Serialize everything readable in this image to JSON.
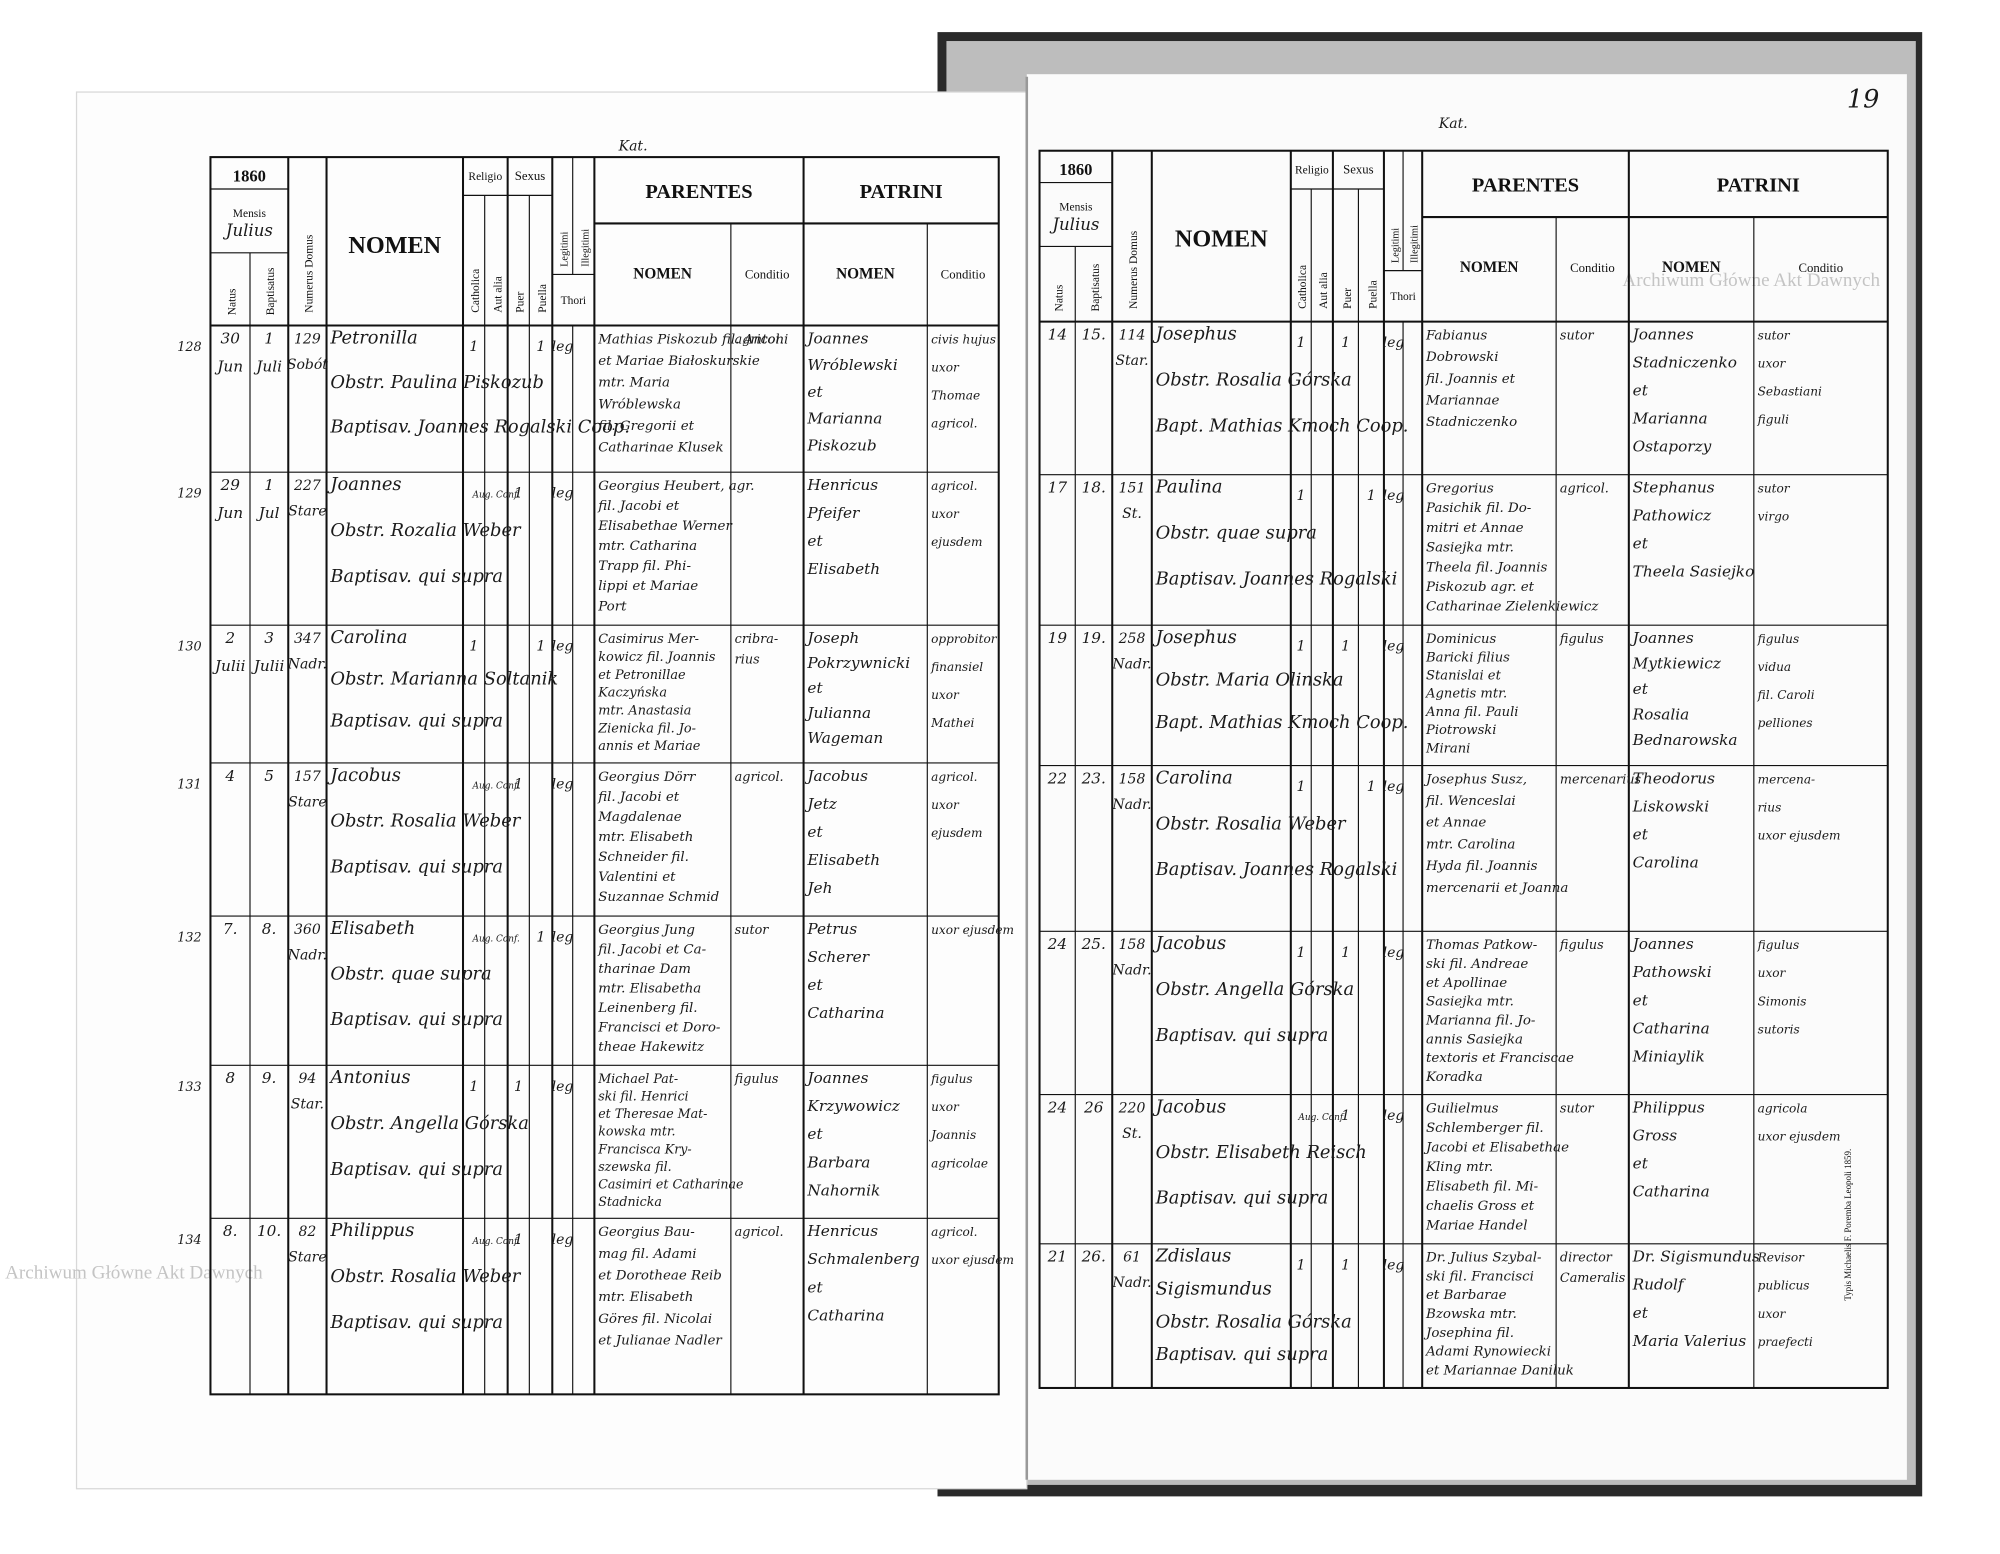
{
  "header": {
    "mensis": "Mensis",
    "natus": "Natus",
    "baptisatus": "Baptisatus",
    "domus": "Numerus Domus",
    "nomen": "NOMEN",
    "religio": "Religio",
    "catholica": "Catholica",
    "aut_alia": "Aut alia",
    "sexus": "Sexus",
    "puer": "Puer",
    "puella": "Puella",
    "legitimi": "Legitimi",
    "illegitimi": "Illegitimi",
    "thori": "Thori",
    "parentes": "PARENTES",
    "patrini": "PATRINI",
    "sub_nomen": "NOMEN",
    "conditio": "Conditio"
  },
  "page_number": "19",
  "printer": "Typis Michaelis F. Poremba Leopoli 1859.",
  "watermarks": [
    "Archiwum Główne Akt Dawnych",
    "Archiwum Główne Akt Dawnych"
  ],
  "pages": [
    {
      "mark": "Kat.",
      "year": "1860",
      "month": "Julius",
      "rows": [
        {
          "row_no": "128",
          "natus": [
            "30",
            "Jun"
          ],
          "baptisatus": [
            "1",
            "Juli"
          ],
          "domus": [
            "129",
            "Sobót"
          ],
          "nomen": [
            "Petronilla",
            "Obstr. Paulina Piskozub",
            "Baptisav. Joannes Rogalski Coop."
          ],
          "catholica": "1",
          "puella": "1",
          "legitimi": "leg",
          "parentes_nomen": [
            "Mathias Piskozub fil. Antoni",
            "et Mariae Białoskurskie",
            "mtr. Maria",
            "Wróblewska",
            "fil. Gregorii et",
            "Catharinae Klusek"
          ],
          "parentes_conditio": [
            "agricol."
          ],
          "patrini_nomen": [
            "Joannes",
            "Wróblewski",
            "et",
            "Marianna",
            "Piskozub"
          ],
          "patrini_conditio": [
            "civis hujus",
            "uxor",
            "Thomae",
            "agricol."
          ]
        },
        {
          "row_no": "129",
          "natus": [
            "29",
            "Jun"
          ],
          "baptisatus": [
            "1",
            "Jul"
          ],
          "domus": [
            "227",
            "Stare"
          ],
          "nomen": [
            "Joannes",
            "Obstr. Rozalia Weber",
            "Baptisav. qui supra"
          ],
          "aut_alia": "Aug. Conf.",
          "puer": "1",
          "legitimi": "leg",
          "parentes_nomen": [
            "Georgius Heubert, agr.",
            "fil. Jacobi et",
            "Elisabethae Werner",
            "mtr. Catharina",
            "Trapp fil. Phi-",
            "lippi et Mariae",
            "Port"
          ],
          "parentes_conditio": [],
          "patrini_nomen": [
            "Henricus",
            "Pfeifer",
            "et",
            "Elisabeth"
          ],
          "patrini_conditio": [
            "agricol.",
            "uxor",
            "ejusdem"
          ]
        },
        {
          "row_no": "130",
          "natus": [
            "2",
            "Julii"
          ],
          "baptisatus": [
            "3",
            "Julii"
          ],
          "domus": [
            "347",
            "Nadr."
          ],
          "nomen": [
            "Carolina",
            "Obstr. Marianna Soltanik",
            "Baptisav. qui supra"
          ],
          "catholica": "1",
          "puella": "1",
          "legitimi": "leg",
          "parentes_nomen": [
            "Casimirus Mer-",
            "kowicz fil. Joannis",
            "et Petronillae",
            "Kaczyńska",
            "mtr. Anastasia",
            "Zienicka fil. Jo-",
            "annis et Mariae"
          ],
          "parentes_conditio": [
            "cribra-",
            "rius"
          ],
          "patrini_nomen": [
            "Joseph",
            "Pokrzywnicki",
            "et",
            "Julianna",
            "Wageman"
          ],
          "patrini_conditio": [
            "opprobitor",
            "finansiel",
            "uxor",
            "Mathei"
          ]
        },
        {
          "row_no": "131",
          "natus": [
            "4"
          ],
          "baptisatus": [
            "5"
          ],
          "domus": [
            "157",
            "Stare"
          ],
          "nomen": [
            "Jacobus",
            "Obstr. Rosalia Weber",
            "Baptisav. qui supra"
          ],
          "aut_alia": "Aug. Conf.",
          "puer": "1",
          "legitimi": "leg",
          "parentes_nomen": [
            "Georgius Dörr",
            "fil. Jacobi et",
            "Magdalenae",
            "mtr. Elisabeth",
            "Schneider fil.",
            "Valentini et",
            "Suzannae Schmid"
          ],
          "parentes_conditio": [
            "agricol."
          ],
          "patrini_nomen": [
            "Jacobus",
            "Jetz",
            "et",
            "Elisabeth",
            "Jeh"
          ],
          "patrini_conditio": [
            "agricol.",
            "uxor",
            "ejusdem"
          ]
        },
        {
          "row_no": "132",
          "natus": [
            "7."
          ],
          "baptisatus": [
            "8."
          ],
          "domus": [
            "360",
            "Nadr."
          ],
          "nomen": [
            "Elisabeth",
            "Obstr. quae supra",
            "Baptisav. qui supra"
          ],
          "aut_alia": "Aug. Conf.",
          "puella": "1",
          "legitimi": "leg",
          "parentes_nomen": [
            "Georgius Jung",
            "fil. Jacobi et Ca-",
            "tharinae Dam",
            "mtr. Elisabetha",
            "Leinenberg fil.",
            "Francisci et Doro-",
            "theae Hakewitz"
          ],
          "parentes_conditio": [
            "sutor"
          ],
          "patrini_nomen": [
            "Petrus",
            "Scherer",
            "et",
            "Catharina"
          ],
          "patrini_conditio": [
            "uxor ejusdem"
          ]
        },
        {
          "row_no": "133",
          "natus": [
            "8"
          ],
          "baptisatus": [
            "9."
          ],
          "domus": [
            "94",
            "Star."
          ],
          "nomen": [
            "Antonius",
            "Obstr. Angella Górska",
            "Baptisav. qui supra"
          ],
          "catholica": "1",
          "puer": "1",
          "legitimi": "leg",
          "parentes_nomen": [
            "Michael Pat-",
            "ski fil. Henrici",
            "et Theresae Mat-",
            "kowska mtr.",
            "Francisca Kry-",
            "szewska fil.",
            "Casimiri et Catharinae",
            "Stadnicka"
          ],
          "parentes_conditio": [
            "figulus"
          ],
          "patrini_nomen": [
            "Joannes",
            "Krzywowicz",
            "et",
            "Barbara",
            "Nahornik"
          ],
          "patrini_conditio": [
            "figulus",
            "uxor",
            "Joannis",
            "agricolae"
          ]
        },
        {
          "row_no": "134",
          "natus": [
            "8."
          ],
          "baptisatus": [
            "10."
          ],
          "domus": [
            "82",
            "Stare"
          ],
          "nomen": [
            "Philippus",
            "Obstr. Rosalia Weber",
            "Baptisav. qui supra"
          ],
          "aut_alia": "Aug. Conf.",
          "puer": "1",
          "legitimi": "leg",
          "parentes_nomen": [
            "Georgius Bau-",
            "mag fil. Adami",
            "et Dorotheae Reib",
            "mtr. Elisabeth",
            "Göres fil. Nicolai",
            "et Julianae Nadler"
          ],
          "parentes_conditio": [
            "agricol."
          ],
          "patrini_nomen": [
            "Henricus",
            "Schmalenberg",
            "et",
            "Catharina"
          ],
          "patrini_conditio": [
            "agricol.",
            "uxor ejusdem"
          ]
        }
      ]
    },
    {
      "mark": "Kat.",
      "year": "1860",
      "month": "Julius",
      "rows": [
        {
          "natus": [
            "14"
          ],
          "baptisatus": [
            "15."
          ],
          "domus": [
            "114",
            "Star."
          ],
          "nomen": [
            "Josephus",
            "Obstr. Rosalia Górska",
            "Bapt. Mathias Kmoch Coop."
          ],
          "catholica": "1",
          "puer": "1",
          "legitimi": "leg",
          "parentes_nomen": [
            "Fabianus",
            "Dobrowski",
            "fil. Joannis et",
            "Mariannae",
            "Stadniczenko"
          ],
          "parentes_conditio": [
            "sutor"
          ],
          "patrini_nomen": [
            "Joannes",
            "Stadniczenko",
            "et",
            "Marianna",
            "Ostaporzy"
          ],
          "patrini_conditio": [
            "sutor",
            "uxor",
            "Sebastiani",
            "figuli"
          ]
        },
        {
          "natus": [
            "17"
          ],
          "baptisatus": [
            "18."
          ],
          "domus": [
            "151",
            "St."
          ],
          "nomen": [
            "Paulina",
            "Obstr. quae supra",
            "Baptisav. Joannes Rogalski"
          ],
          "catholica": "1",
          "puella": "1",
          "legitimi": "leg",
          "parentes_nomen": [
            "Gregorius",
            "Pasichik fil. Do-",
            "mitri et Annae",
            "Sasiejka mtr.",
            "Theela fil. Joannis",
            "Piskozub agr. et",
            "Catharinae Zielenkiewicz"
          ],
          "parentes_conditio": [
            "agricol."
          ],
          "patrini_nomen": [
            "Stephanus",
            "Pathowicz",
            "et",
            "Theela Sasiejko"
          ],
          "patrini_conditio": [
            "sutor",
            "virgo"
          ]
        },
        {
          "natus": [
            "19"
          ],
          "baptisatus": [
            "19."
          ],
          "domus": [
            "258",
            "Nadr."
          ],
          "nomen": [
            "Josephus",
            "Obstr. Maria Olinska",
            "Bapt. Mathias Kmoch Coop."
          ],
          "catholica": "1",
          "puer": "1",
          "legitimi": "leg",
          "parentes_nomen": [
            "Dominicus",
            "Baricki filius",
            "Stanislai et",
            "Agnetis mtr.",
            "Anna fil. Pauli",
            "Piotrowski",
            "Mirani"
          ],
          "parentes_conditio": [
            "figulus"
          ],
          "patrini_nomen": [
            "Joannes",
            "Mytkiewicz",
            "et",
            "Rosalia",
            "Bednarowska"
          ],
          "patrini_conditio": [
            "figulus",
            "vidua",
            "fil. Caroli",
            "pelliones"
          ]
        },
        {
          "natus": [
            "22"
          ],
          "baptisatus": [
            "23."
          ],
          "domus": [
            "158",
            "Nadr."
          ],
          "nomen": [
            "Carolina",
            "Obstr. Rosalia Weber",
            "Baptisav. Joannes Rogalski"
          ],
          "catholica": "1",
          "puella": "1",
          "legitimi": "leg",
          "parentes_nomen": [
            "Josephus Susz,",
            "fil. Wenceslai",
            "et Annae",
            "mtr. Carolina",
            "Hyda fil. Joannis",
            "mercenarii et Joanna"
          ],
          "parentes_conditio": [
            "mercenarius"
          ],
          "patrini_nomen": [
            "Theodorus",
            "Liskowski",
            "et",
            "Carolina"
          ],
          "patrini_conditio": [
            "mercena-",
            "rius",
            "uxor ejusdem"
          ]
        },
        {
          "natus": [
            "24"
          ],
          "baptisatus": [
            "25."
          ],
          "domus": [
            "158",
            "Nadr."
          ],
          "nomen": [
            "Jacobus",
            "Obstr. Angella Górska",
            "Baptisav. qui supra"
          ],
          "catholica": "1",
          "puer": "1",
          "legitimi": "leg",
          "parentes_nomen": [
            "Thomas Patkow-",
            "ski fil. Andreae",
            "et Apollinae",
            "Sasiejka mtr.",
            "Marianna fil. Jo-",
            "annis Sasiejka",
            "textoris et Franciscae",
            "Koradka"
          ],
          "parentes_conditio": [
            "figulus"
          ],
          "patrini_nomen": [
            "Joannes",
            "Pathowski",
            "et",
            "Catharina",
            "Miniaylik"
          ],
          "patrini_conditio": [
            "figulus",
            "uxor",
            "Simonis",
            "sutoris"
          ]
        },
        {
          "natus": [
            "24"
          ],
          "baptisatus": [
            "26"
          ],
          "domus": [
            "220",
            "St."
          ],
          "nomen": [
            "Jacobus",
            "Obstr. Elisabeth Reisch",
            "Baptisav. qui supra"
          ],
          "aut_alia": "Aug. Conf.",
          "puer": "1",
          "legitimi": "leg",
          "parentes_nomen": [
            "Guilielmus",
            "Schlemberger fil.",
            "Jacobi et Elisabethae",
            "Kling mtr.",
            "Elisabeth fil. Mi-",
            "chaelis Gross et",
            "Mariae Handel"
          ],
          "parentes_conditio": [
            "sutor"
          ],
          "patrini_nomen": [
            "Philippus",
            "Gross",
            "et",
            "Catharina"
          ],
          "patrini_conditio": [
            "agricola",
            "uxor ejusdem"
          ]
        },
        {
          "natus": [
            "21"
          ],
          "baptisatus": [
            "26."
          ],
          "domus": [
            "61",
            "Nadr."
          ],
          "nomen": [
            "Zdislaus",
            "Sigismundus",
            "Obstr. Rosalia Górska",
            "Baptisav. qui supra"
          ],
          "catholica": "1",
          "puer": "1",
          "legitimi": "leg",
          "parentes_nomen": [
            "Dr. Julius Szybal-",
            "ski fil. Francisci",
            "et Barbarae",
            "Bzowska mtr.",
            "Josephina fil.",
            "Adami Rynowiecki",
            "et Mariannae Daniluk"
          ],
          "parentes_conditio": [
            "director",
            "Cameralis"
          ],
          "patrini_nomen": [
            "Dr. Sigismundus",
            "Rudolf",
            "et",
            "Maria Valerius"
          ],
          "patrini_conditio": [
            "Revisor",
            "publicus",
            "uxor",
            "praefecti"
          ]
        }
      ]
    }
  ]
}
